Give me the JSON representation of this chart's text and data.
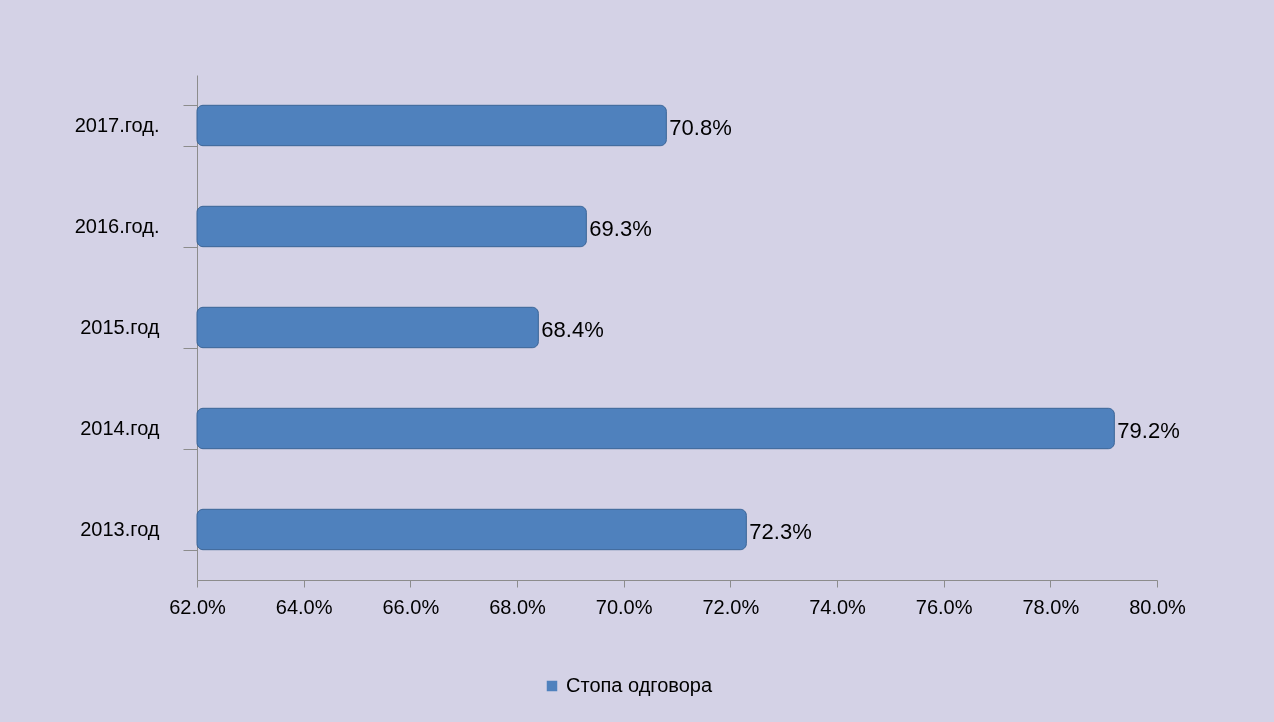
{
  "chart_data": {
    "type": "bar",
    "orientation": "horizontal",
    "categories": [
      "2017.год.",
      "2016.год.",
      "2015.год",
      "2014.год",
      "2013.год"
    ],
    "series": [
      {
        "name": "Стопа одговора",
        "color": "#4f81bd",
        "values": [
          70.8,
          69.3,
          68.4,
          79.2,
          72.3
        ],
        "value_labels": [
          "70.8%",
          "69.3%",
          "68.4%",
          "79.2%",
          "72.3%"
        ]
      }
    ],
    "xlim": [
      62,
      80
    ],
    "xticks": [
      {
        "value": 62,
        "label": "62.0%"
      },
      {
        "value": 64,
        "label": "64.0%"
      },
      {
        "value": 66,
        "label": "66.0%"
      },
      {
        "value": 68,
        "label": "68.0%"
      },
      {
        "value": 70,
        "label": "70.0%"
      },
      {
        "value": 72,
        "label": "72.0%"
      },
      {
        "value": 74,
        "label": "74.0%"
      },
      {
        "value": 76,
        "label": "76.0%"
      },
      {
        "value": 78,
        "label": "78.0%"
      },
      {
        "value": 80,
        "label": "80.0%"
      }
    ],
    "grid": false,
    "legend": "bottom"
  }
}
